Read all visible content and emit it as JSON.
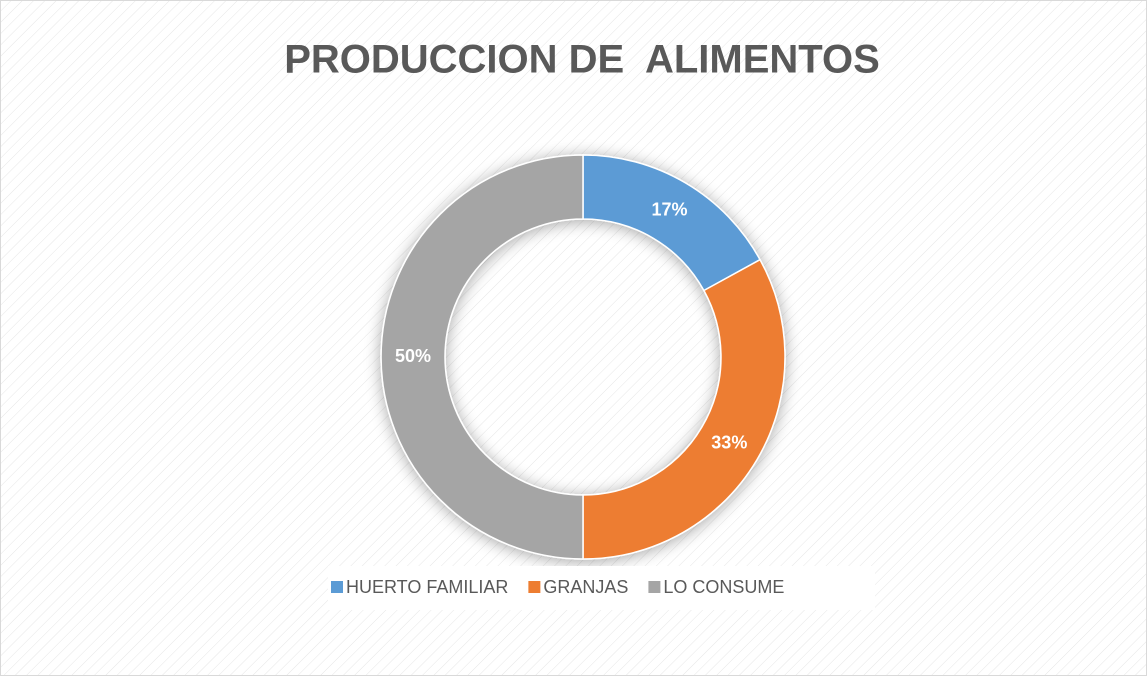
{
  "chart_data": {
    "type": "donut",
    "title": "PRODUCCION DE  ALIMENTOS",
    "categories": [
      "HUERTO FAMILIAR",
      "GRANJAS",
      "LO CONSUME"
    ],
    "values": [
      17,
      33,
      50
    ],
    "value_labels": [
      "17%",
      "33%",
      "50%"
    ],
    "colors": [
      "#5b9bd5",
      "#ed7d31",
      "#a5a5a5"
    ],
    "legend": "bottom"
  }
}
